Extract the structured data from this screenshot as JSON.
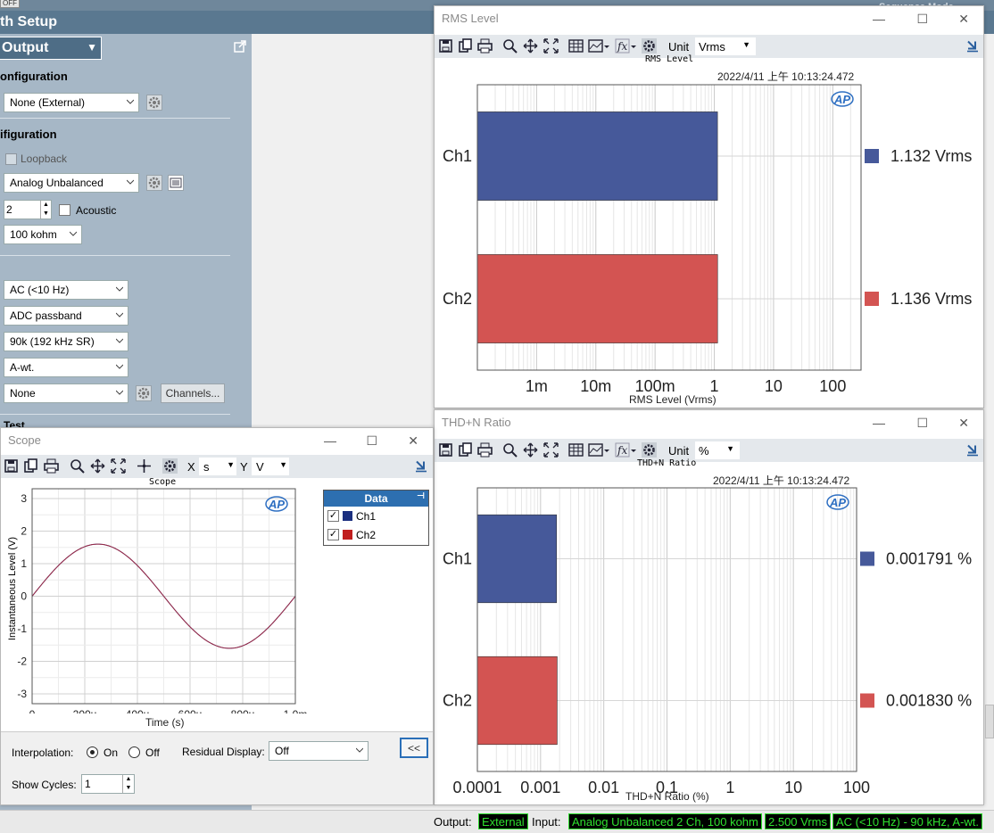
{
  "setup": {
    "title": "th Setup",
    "off_badge": "OFF",
    "sequence_mode": "Sequence Mode",
    "output_dropdown": "Output",
    "out_config_title": "onfiguration",
    "out_config_value": "None (External)",
    "in_config_title": "ifiguration",
    "loopback_label": "Loopback",
    "input_type": "Analog Unbalanced",
    "channels_count": "2",
    "acoustic_label": "Acoustic",
    "impedance": "100 kohm",
    "coupling": "AC (<10 Hz)",
    "filter": "ADC passband",
    "bandwidth": "90k (192 kHz SR)",
    "weighting": "A-wt.",
    "none_value": "None",
    "channels_button": "Channels...",
    "test_label": "Test"
  },
  "rms": {
    "title": "RMS Level",
    "unit_label": "Unit",
    "unit_value": "Vrms",
    "plot_title": "RMS Level",
    "timestamp": "2022/4/11 上午 10:13:24.472",
    "xlabel": "RMS Level (Vrms)",
    "ticks": [
      "1m",
      "10m",
      "100m",
      "1",
      "10",
      "100"
    ],
    "channels": [
      {
        "name": "Ch1",
        "value": 1.132,
        "label": "1.132  Vrms",
        "color": "#46599a"
      },
      {
        "name": "Ch2",
        "value": 1.136,
        "label": "1.136  Vrms",
        "color": "#d35452"
      }
    ]
  },
  "thd": {
    "title": "THD+N Ratio",
    "unit_label": "Unit",
    "unit_value": "%",
    "plot_title": "THD+N Ratio",
    "timestamp": "2022/4/11 上午 10:13:24.472",
    "xlabel": "THD+N Ratio (%)",
    "ticks": [
      "0.0001",
      "0.001",
      "0.01",
      "0.1",
      "1",
      "10",
      "100"
    ],
    "channels": [
      {
        "name": "Ch1",
        "value": 0.001791,
        "label": "0.001791  %",
        "color": "#46599a"
      },
      {
        "name": "Ch2",
        "value": 0.00183,
        "label": "0.001830  %",
        "color": "#d35452"
      }
    ]
  },
  "scope": {
    "title": "Scope",
    "x_label": "X",
    "x_unit": "s",
    "y_label": "Y",
    "y_unit": "V",
    "plot_title": "Scope",
    "ylabel": "Instantaneous Level (V)",
    "xlabel": "Time (s)",
    "yticks": [
      "3",
      "2",
      "1",
      "0",
      "-1",
      "-2",
      "-3"
    ],
    "xticks": [
      "0",
      "200u",
      "400u",
      "600u",
      "800u",
      "1.0m"
    ],
    "legend_header": "Data",
    "legend_items": [
      "Ch1",
      "Ch2"
    ],
    "interpolation_label": "Interpolation:",
    "on_label": "On",
    "off_label": "Off",
    "residual_label": "Residual Display:",
    "residual_value": "Off",
    "collapse_button": "<<",
    "show_cycles_label": "Show Cycles:",
    "show_cycles_value": "1"
  },
  "chart_data": [
    {
      "type": "bar",
      "title": "RMS Level",
      "orientation": "horizontal",
      "xscale": "log",
      "xlim": [
        0.0001,
        300
      ],
      "categories": [
        "Ch1",
        "Ch2"
      ],
      "values": [
        1.132,
        1.136
      ],
      "xlabel": "RMS Level (Vrms)",
      "colors": [
        "#46599a",
        "#d35452"
      ]
    },
    {
      "type": "bar",
      "title": "THD+N Ratio",
      "orientation": "horizontal",
      "xscale": "log",
      "xlim": [
        0.0001,
        100
      ],
      "categories": [
        "Ch1",
        "Ch2"
      ],
      "values": [
        0.001791,
        0.00183
      ],
      "xlabel": "THD+N Ratio (%)",
      "colors": [
        "#46599a",
        "#d35452"
      ]
    },
    {
      "type": "line",
      "title": "Scope",
      "xlim": [
        0,
        0.001
      ],
      "ylim": [
        -3.3,
        3.3
      ],
      "xlabel": "Time (s)",
      "ylabel": "Instantaneous Level (V)",
      "series": [
        {
          "name": "Ch1",
          "amplitude": 1.6,
          "frequency_hz": 1000
        },
        {
          "name": "Ch2",
          "amplitude": 1.6,
          "frequency_hz": 1000
        }
      ],
      "grid": true
    }
  ],
  "statusbar": {
    "output_label": "Output:",
    "output_value": "External",
    "input_label": "Input:",
    "input_value": "Analog Unbalanced 2 Ch, 100 kohm",
    "range_value": "2.500 Vrms",
    "filter_value": "AC (<10 Hz) - 90 kHz, A-wt."
  }
}
